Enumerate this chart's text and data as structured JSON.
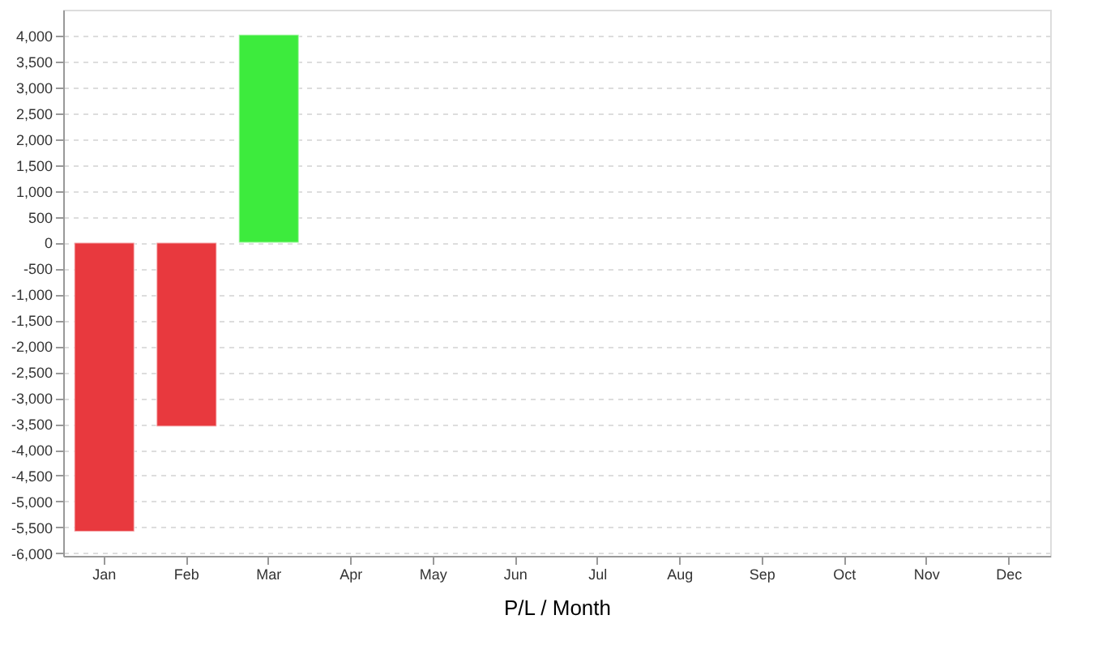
{
  "chart_data": {
    "type": "bar",
    "xlabel": "P/L / Month",
    "categories": [
      "Jan",
      "Feb",
      "Mar",
      "Apr",
      "May",
      "Jun",
      "Jul",
      "Aug",
      "Sep",
      "Oct",
      "Nov",
      "Dec"
    ],
    "values": [
      -5580,
      -3550,
      4020,
      null,
      null,
      null,
      null,
      null,
      null,
      null,
      null,
      null
    ],
    "colors": [
      "#e8393e",
      "#e8393e",
      "#3deb3d",
      "#e8393e",
      "#e8393e",
      "#e8393e",
      "#e8393e",
      "#e8393e",
      "#e8393e",
      "#e8393e",
      "#e8393e",
      "#e8393e"
    ],
    "ylim": [
      -6050,
      4500
    ],
    "yticks": [
      {
        "value": -6000,
        "label": "-6,000"
      },
      {
        "value": -5500,
        "label": "-5,500"
      },
      {
        "value": -5000,
        "label": "-5,000"
      },
      {
        "value": -4500,
        "label": "-4,500"
      },
      {
        "value": -4000,
        "label": "-4,000"
      },
      {
        "value": -3500,
        "label": "-3,500"
      },
      {
        "value": -3000,
        "label": "-3,000"
      },
      {
        "value": -2500,
        "label": "-2,500"
      },
      {
        "value": -2000,
        "label": "-2,000"
      },
      {
        "value": -1500,
        "label": "-1,500"
      },
      {
        "value": -1000,
        "label": "-1,000"
      },
      -500,
      0,
      500,
      {
        "value": 1000,
        "label": "1,000"
      },
      {
        "value": 1500,
        "label": "1,500"
      },
      {
        "value": 2000,
        "label": "2,000"
      },
      {
        "value": 2500,
        "label": "2,500"
      },
      {
        "value": 3000,
        "label": "3,000"
      },
      {
        "value": 3500,
        "label": "3,500"
      },
      {
        "value": 4000,
        "label": "4,000"
      }
    ],
    "grid": "y"
  }
}
